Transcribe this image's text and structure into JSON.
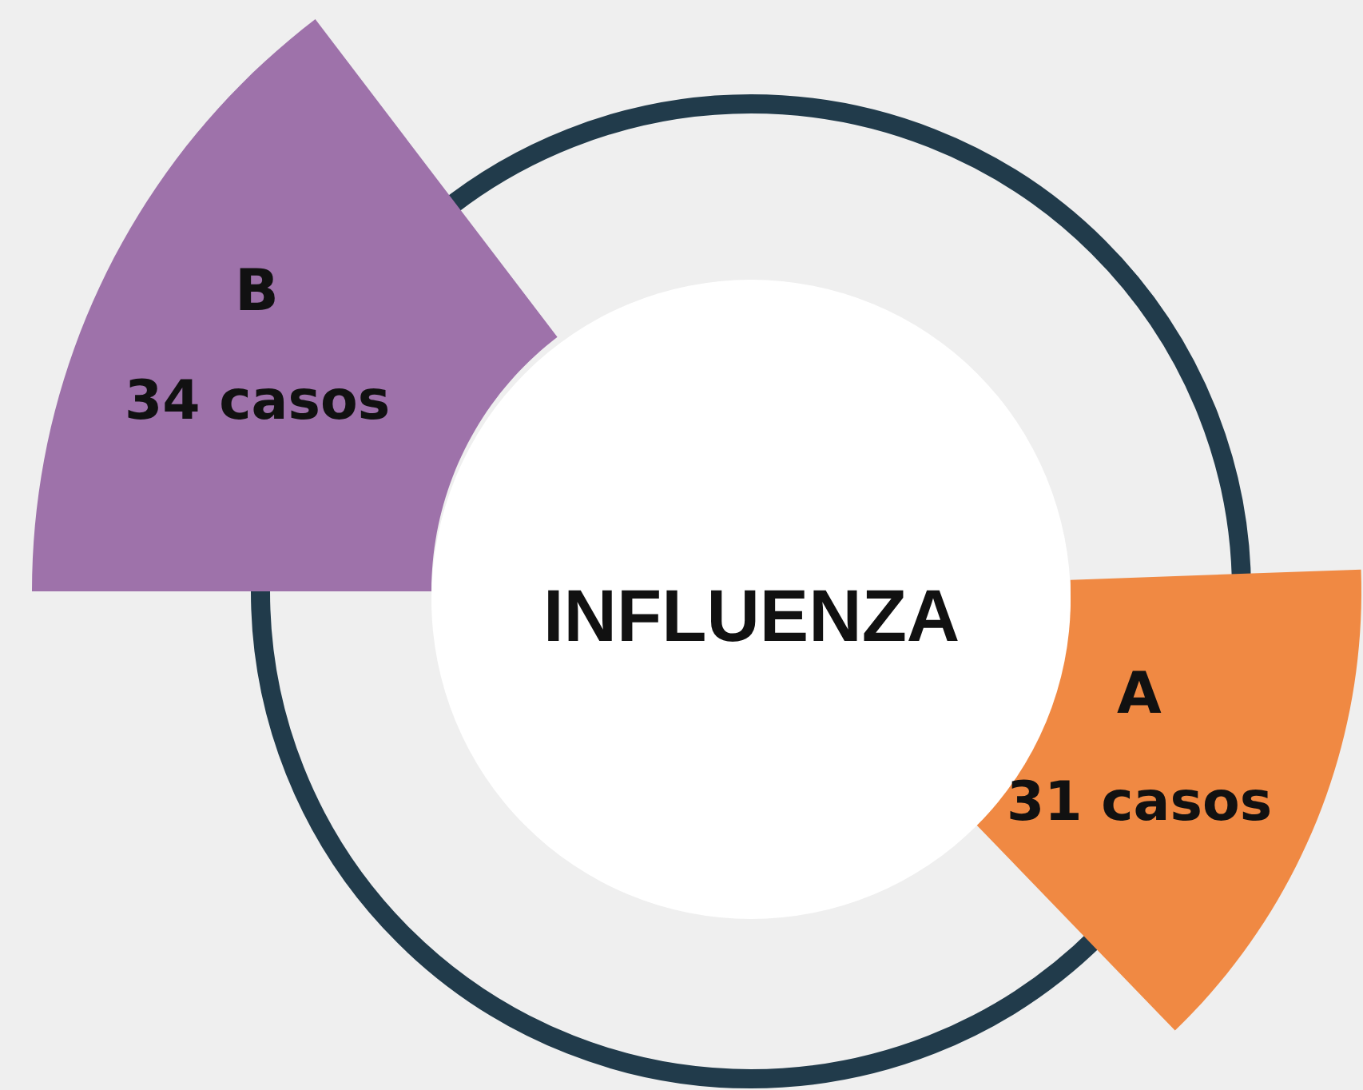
{
  "chart_data": {
    "type": "other",
    "title": "INFLUENZA",
    "categories": [
      "A",
      "B"
    ],
    "values": [
      31,
      34
    ],
    "value_labels": [
      "31 casos",
      "34 casos"
    ],
    "colors": [
      "#f08943",
      "#9e72aa"
    ]
  }
}
